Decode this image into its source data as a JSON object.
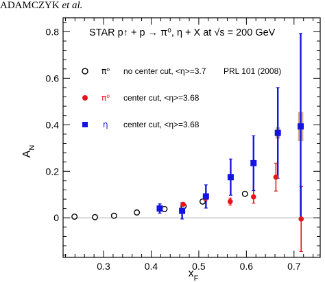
{
  "header": {
    "authors": "ADAMCZYK",
    "suffix": "et al."
  },
  "colors": {
    "pi0_open": "#000000",
    "pi0_center": "#e8141c",
    "eta": "#1414e0",
    "sys_box": "#c8a07c",
    "zero_line": "#a9a9a9"
  },
  "chart_data": {
    "type": "scatter",
    "title": "STAR  p↑ + p → π⁰, η + X at √s = 200 GeV",
    "xlabel": "x_F",
    "ylabel": "A_N",
    "xlim": [
      0.215,
      0.755
    ],
    "ylim": [
      -0.17,
      0.86
    ],
    "xticks": [
      {
        "v": 0.3,
        "label": "0.3"
      },
      {
        "v": 0.4,
        "label": "0.4"
      },
      {
        "v": 0.5,
        "label": "0.5"
      },
      {
        "v": 0.6,
        "label": "0.6"
      },
      {
        "v": 0.7,
        "label": "0.7"
      }
    ],
    "yticks": [
      {
        "v": 0,
        "label": "0"
      },
      {
        "v": 0.2,
        "label": "0.2"
      },
      {
        "v": 0.4,
        "label": "0.4"
      },
      {
        "v": 0.6,
        "label": "0.6"
      },
      {
        "v": 0.8,
        "label": "0.8"
      }
    ],
    "zero_line": true,
    "legend": "top-left",
    "series": [
      {
        "name": "no center cut, <η>=3.7",
        "symbol_text": "π⁰",
        "citation": "PRL 101 (2008)",
        "marker": "open-circle",
        "color": "#000000",
        "points": [
          {
            "x": 0.239,
            "y": 0.005
          },
          {
            "x": 0.282,
            "y": 0.003
          },
          {
            "x": 0.322,
            "y": 0.009
          },
          {
            "x": 0.37,
            "y": 0.023
          },
          {
            "x": 0.428,
            "y": 0.038
          },
          {
            "x": 0.468,
            "y": 0.05
          },
          {
            "x": 0.508,
            "y": 0.07
          },
          {
            "x": 0.597,
            "y": 0.103
          }
        ]
      },
      {
        "name": "center cut, <η>=3.68",
        "symbol_text": "π⁰",
        "marker": "filled-circle",
        "color": "#e8141c",
        "points": [
          {
            "x": 0.419,
            "y": 0.037,
            "err": 0.008
          },
          {
            "x": 0.467,
            "y": 0.058,
            "err": 0.008
          },
          {
            "x": 0.514,
            "y": 0.083,
            "err": 0.012
          },
          {
            "x": 0.566,
            "y": 0.07,
            "err": 0.015
          },
          {
            "x": 0.615,
            "y": 0.09,
            "err": 0.027
          },
          {
            "x": 0.662,
            "y": 0.175,
            "err": 0.06
          },
          {
            "x": 0.715,
            "y": -0.005,
            "err": 0.14
          }
        ]
      },
      {
        "name": "center cut, <η>=3.68",
        "symbol_text": "η",
        "marker": "filled-square",
        "color": "#1414e0",
        "points": [
          {
            "x": 0.418,
            "y": 0.04,
            "err": 0.02
          },
          {
            "x": 0.465,
            "y": 0.03,
            "err": 0.035
          },
          {
            "x": 0.515,
            "y": 0.092,
            "err": 0.05
          },
          {
            "x": 0.567,
            "y": 0.175,
            "err": 0.078
          },
          {
            "x": 0.615,
            "y": 0.235,
            "err": 0.118
          },
          {
            "x": 0.666,
            "y": 0.365,
            "err": 0.195
          },
          {
            "x": 0.714,
            "y": 0.393,
            "err": 0.4
          }
        ]
      }
    ],
    "systematics": [
      {
        "series": "eta",
        "x": 0.666,
        "ylo": 0.34,
        "yhi": 0.39,
        "xhalf": 0.0045
      },
      {
        "series": "eta",
        "x": 0.714,
        "ylo": 0.33,
        "yhi": 0.455,
        "xhalf": 0.0055
      }
    ]
  }
}
